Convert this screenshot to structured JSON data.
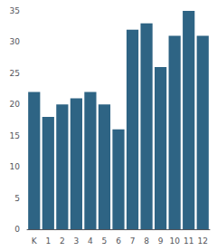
{
  "chart_data": {
    "type": "bar",
    "categories": [
      "K",
      "1",
      "2",
      "3",
      "4",
      "5",
      "6",
      "7",
      "8",
      "9",
      "10",
      "11",
      "12"
    ],
    "values": [
      22,
      18,
      20,
      21,
      22,
      20,
      16,
      32,
      33,
      26,
      31,
      35,
      31
    ],
    "color": "#2e6484",
    "ylim": [
      0,
      35
    ],
    "yticks": [
      0,
      5,
      10,
      15,
      20,
      25,
      30,
      35
    ],
    "grid": false
  }
}
